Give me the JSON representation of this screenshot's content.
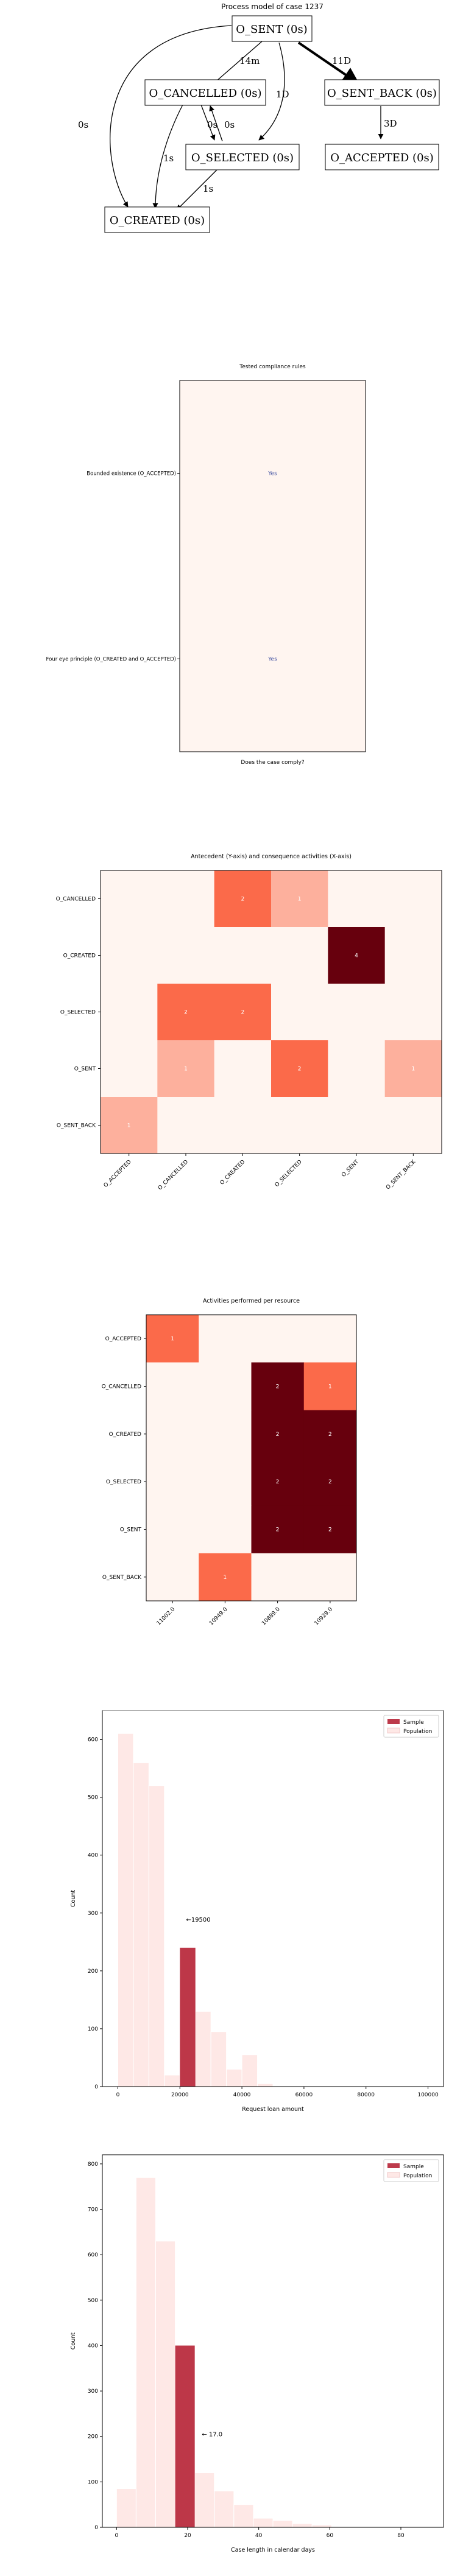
{
  "process_model": {
    "title": "Process model of case 1237",
    "nodes": {
      "sent": "O_SENT (0s)",
      "cancelled": "O_CANCELLED (0s)",
      "sent_back": "O_SENT_BACK (0s)",
      "selected": "O_SELECTED (0s)",
      "accepted": "O_ACCEPTED (0s)",
      "created": "O_CREATED (0s)"
    },
    "edges": {
      "sent_cancelled": "14m",
      "sent_sentback": "11D",
      "sent_selected": "1D",
      "sent_created": "0s",
      "cancelled_selected": "0s",
      "selected_cancelled": "0s",
      "cancelled_created": "1s",
      "selected_created": "1s",
      "sentback_accepted": "3D"
    }
  },
  "chart_data": [
    {
      "type": "heatmap",
      "title": "Tested compliance rules",
      "xlabel": "Does the case comply?",
      "rows": [
        "Bounded existence (O_ACCEPTED)",
        "Four eye principle (O_CREATED and O_ACCEPTED)"
      ],
      "values": [
        [
          "Yes"
        ],
        [
          "Yes"
        ]
      ]
    },
    {
      "type": "heatmap",
      "title": "Antecedent (Y-axis) and consequence activities (X-axis)",
      "rows": [
        "O_CANCELLED",
        "O_CREATED",
        "O_SELECTED",
        "O_SENT",
        "O_SENT_BACK"
      ],
      "columns": [
        "O_ACCEPTED",
        "O_CANCELLED",
        "O_CREATED",
        "O_SELECTED",
        "O_SENT",
        "O_SENT_BACK"
      ],
      "values": [
        [
          0,
          0,
          2,
          1,
          0,
          0
        ],
        [
          0,
          0,
          0,
          0,
          4,
          0
        ],
        [
          0,
          2,
          2,
          0,
          0,
          0
        ],
        [
          0,
          1,
          0,
          2,
          0,
          1
        ],
        [
          1,
          0,
          0,
          0,
          0,
          0
        ]
      ],
      "vmax": 4
    },
    {
      "type": "heatmap",
      "title": "Activities performed per resource",
      "rows": [
        "O_ACCEPTED",
        "O_CANCELLED",
        "O_CREATED",
        "O_SELECTED",
        "O_SENT",
        "O_SENT_BACK"
      ],
      "columns": [
        "11002.0",
        "10949.0",
        "10889.0",
        "10929.0"
      ],
      "values": [
        [
          1,
          0,
          0,
          0
        ],
        [
          0,
          0,
          2,
          1
        ],
        [
          0,
          0,
          2,
          2
        ],
        [
          0,
          0,
          2,
          2
        ],
        [
          0,
          0,
          2,
          2
        ],
        [
          0,
          1,
          0,
          0
        ]
      ],
      "vmax": 2
    },
    {
      "type": "bar",
      "xlabel": "Request loan amount",
      "ylabel": "Count",
      "xlim": [
        -5000,
        105000
      ],
      "ylim": [
        0,
        650
      ],
      "xticks": [
        0,
        20000,
        40000,
        60000,
        80000,
        100000
      ],
      "yticks": [
        0,
        100,
        200,
        300,
        400,
        500,
        600
      ],
      "series": [
        {
          "name": "Sample",
          "color": "#b2182b",
          "bins": [
            {
              "x0": 20000,
              "x1": 25000,
              "y": 240
            }
          ]
        },
        {
          "name": "Population",
          "color": "#fde0dd",
          "bins": [
            {
              "x0": 0,
              "x1": 5000,
              "y": 610
            },
            {
              "x0": 5000,
              "x1": 10000,
              "y": 560
            },
            {
              "x0": 10000,
              "x1": 15000,
              "y": 520
            },
            {
              "x0": 15000,
              "x1": 20000,
              "y": 20
            },
            {
              "x0": 20000,
              "x1": 25000,
              "y": 240
            },
            {
              "x0": 25000,
              "x1": 30000,
              "y": 130
            },
            {
              "x0": 30000,
              "x1": 35000,
              "y": 95
            },
            {
              "x0": 35000,
              "x1": 40000,
              "y": 30
            },
            {
              "x0": 40000,
              "x1": 45000,
              "y": 55
            },
            {
              "x0": 45000,
              "x1": 50000,
              "y": 5
            }
          ]
        }
      ],
      "annotation": {
        "text": "←19500",
        "x": 22000,
        "y": 285
      }
    },
    {
      "type": "bar",
      "xlabel": "Case length in calendar days",
      "ylabel": "Count",
      "xlim": [
        -4,
        92
      ],
      "ylim": [
        0,
        820
      ],
      "xticks": [
        0,
        20,
        40,
        60,
        80
      ],
      "yticks": [
        0,
        100,
        200,
        300,
        400,
        500,
        600,
        700,
        800
      ],
      "series": [
        {
          "name": "Sample",
          "color": "#b2182b",
          "bins": [
            {
              "x0": 16.5,
              "x1": 22,
              "y": 400
            }
          ]
        },
        {
          "name": "Population",
          "color": "#fde0dd",
          "bins": [
            {
              "x0": 0,
              "x1": 5.5,
              "y": 85
            },
            {
              "x0": 5.5,
              "x1": 11,
              "y": 770
            },
            {
              "x0": 11,
              "x1": 16.5,
              "y": 630
            },
            {
              "x0": 16.5,
              "x1": 22,
              "y": 400
            },
            {
              "x0": 22,
              "x1": 27.5,
              "y": 120
            },
            {
              "x0": 27.5,
              "x1": 33,
              "y": 80
            },
            {
              "x0": 33,
              "x1": 38.5,
              "y": 50
            },
            {
              "x0": 38.5,
              "x1": 44,
              "y": 20
            },
            {
              "x0": 44,
              "x1": 49.5,
              "y": 15
            },
            {
              "x0": 49.5,
              "x1": 55,
              "y": 8
            },
            {
              "x0": 55,
              "x1": 60.5,
              "y": 5
            }
          ]
        }
      ],
      "annotation": {
        "text": "← 17.0",
        "x": 24,
        "y": 200
      }
    }
  ],
  "colors": {
    "cmap_low": "#fff5f0",
    "cmap_mid": "#fb6a4a",
    "cmap_high": "#67000d",
    "yes_text": "#4050a0"
  }
}
